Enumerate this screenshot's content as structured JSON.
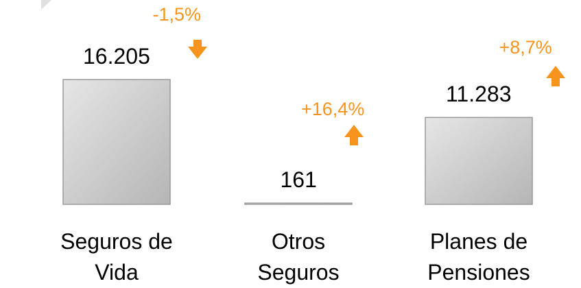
{
  "chart_data": {
    "type": "bar",
    "categories": [
      "Seguros de Vida",
      "Otros Seguros",
      "Planes de Pensiones"
    ],
    "values": [
      16205,
      161,
      11283
    ],
    "value_labels": [
      "16.205",
      "161",
      "11.283"
    ],
    "changes": [
      "-1,5%",
      "+16,4%",
      "+8,7%"
    ],
    "color": "#c9c9c9"
  }
}
